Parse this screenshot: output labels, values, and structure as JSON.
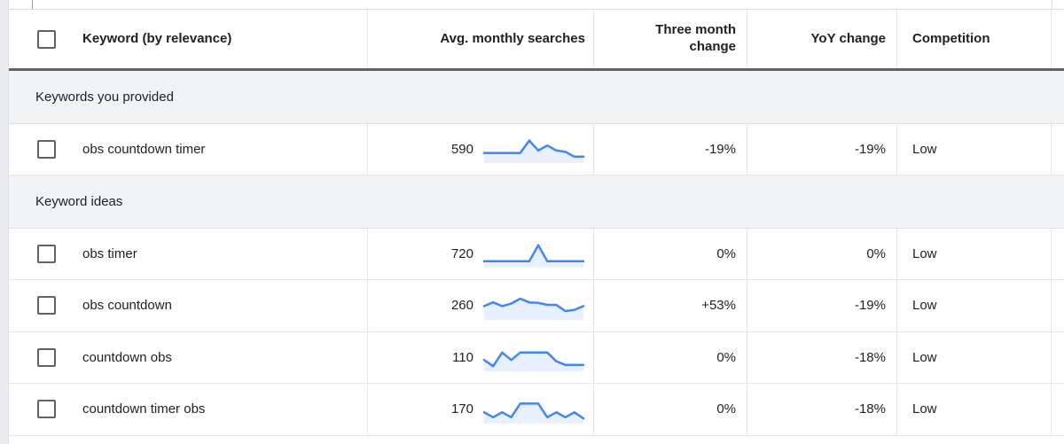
{
  "header": {
    "columns": [
      "Keyword (by relevance)",
      "Avg. monthly searches",
      "Three month change",
      "YoY change",
      "Competition"
    ]
  },
  "sections": [
    {
      "label": "Keywords you provided",
      "rows": [
        {
          "keyword": "obs countdown timer",
          "avg_monthly_searches": "590",
          "three_month_change": "-19%",
          "yoy_change": "-19%",
          "competition": "Low",
          "checked": false,
          "trend": [
            3,
            3,
            3,
            3,
            3,
            8,
            4,
            6,
            4,
            3.5,
            1.5,
            1.5
          ]
        }
      ]
    },
    {
      "label": "Keyword ideas",
      "rows": [
        {
          "keyword": "obs timer",
          "avg_monthly_searches": "720",
          "three_month_change": "0%",
          "yoy_change": "0%",
          "competition": "Low",
          "checked": false,
          "trend": [
            1.5,
            1.5,
            1.5,
            1.5,
            1.5,
            1.5,
            8,
            1.5,
            1.5,
            1.5,
            1.5,
            1.5
          ]
        },
        {
          "keyword": "obs countdown",
          "avg_monthly_searches": "260",
          "three_month_change": "+53%",
          "yoy_change": "-19%",
          "competition": "Low",
          "checked": false,
          "trend": [
            4.5,
            6,
            4.5,
            5.5,
            7.5,
            6,
            5.8,
            5,
            5,
            2.5,
            3,
            4.5
          ]
        },
        {
          "keyword": "countdown obs",
          "avg_monthly_searches": "110",
          "three_month_change": "0%",
          "yoy_change": "-18%",
          "competition": "Low",
          "checked": false,
          "trend": [
            3.5,
            1,
            6.5,
            3.5,
            6.5,
            6.5,
            6.5,
            6.5,
            3,
            1.5,
            1.5,
            1.5
          ]
        },
        {
          "keyword": "countdown timer obs",
          "avg_monthly_searches": "170",
          "three_month_change": "0%",
          "yoy_change": "-18%",
          "competition": "Low",
          "checked": false,
          "trend": [
            3.5,
            1.5,
            3.5,
            1.5,
            7,
            7,
            7,
            1.5,
            3.5,
            1.5,
            3.5,
            1
          ]
        }
      ]
    }
  ],
  "colors": {
    "spark_line": "#4285f4",
    "spark_fill": "#e8f0fe",
    "section_bg": "#f1f3f4",
    "header_divider": "#5f6368",
    "row_border": "#e6e6e6",
    "text": "#202124"
  }
}
